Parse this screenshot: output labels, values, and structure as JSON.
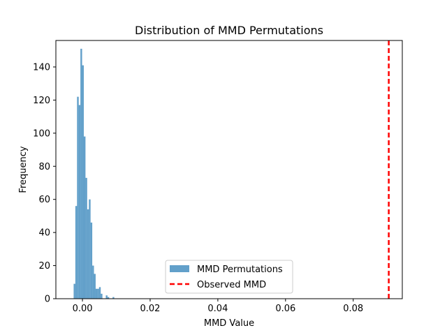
{
  "chart_data": {
    "type": "histogram",
    "title": "Distribution of MMD Permutations",
    "xlabel": "MMD Value",
    "ylabel": "Frequency",
    "xlim": [
      -0.00785,
      0.0945
    ],
    "ylim": [
      0,
      156
    ],
    "xticks": [
      0.0,
      0.02,
      0.04,
      0.06,
      0.08
    ],
    "xtick_labels": [
      "0.00",
      "0.02",
      "0.04",
      "0.06",
      "0.08"
    ],
    "yticks": [
      0,
      20,
      40,
      60,
      80,
      100,
      120,
      140
    ],
    "yticklabels": [
      "0",
      "20",
      "40",
      "60",
      "80",
      "100",
      "120",
      "140"
    ],
    "grid": false,
    "legend_position": "lower center",
    "series": [
      {
        "name": "MMD Permutations",
        "kind": "histogram",
        "color": "#1f77b4",
        "alpha": 0.7,
        "bins": [
          {
            "x0": -0.0026,
            "x1": -0.0021,
            "count": 9
          },
          {
            "x0": -0.0021,
            "x1": -0.0016,
            "count": 56
          },
          {
            "x0": -0.0016,
            "x1": -0.0011,
            "count": 122
          },
          {
            "x0": -0.0011,
            "x1": -0.0006,
            "count": 117
          },
          {
            "x0": -0.0006,
            "x1": -0.0001,
            "count": 151
          },
          {
            "x0": -0.0001,
            "x1": 0.0004,
            "count": 141
          },
          {
            "x0": 0.0004,
            "x1": 0.0009,
            "count": 98
          },
          {
            "x0": 0.0009,
            "x1": 0.0014,
            "count": 73
          },
          {
            "x0": 0.0014,
            "x1": 0.0019,
            "count": 54
          },
          {
            "x0": 0.0019,
            "x1": 0.0024,
            "count": 60
          },
          {
            "x0": 0.0024,
            "x1": 0.0029,
            "count": 46
          },
          {
            "x0": 0.0029,
            "x1": 0.0034,
            "count": 20
          },
          {
            "x0": 0.0034,
            "x1": 0.0039,
            "count": 15
          },
          {
            "x0": 0.0039,
            "x1": 0.0044,
            "count": 6
          },
          {
            "x0": 0.0044,
            "x1": 0.0049,
            "count": 6
          },
          {
            "x0": 0.0049,
            "x1": 0.0054,
            "count": 7
          },
          {
            "x0": 0.0054,
            "x1": 0.0059,
            "count": 3
          },
          {
            "x0": 0.0059,
            "x1": 0.0064,
            "count": 0
          },
          {
            "x0": 0.0064,
            "x1": 0.0069,
            "count": 0
          },
          {
            "x0": 0.0069,
            "x1": 0.0074,
            "count": 2
          },
          {
            "x0": 0.0074,
            "x1": 0.0079,
            "count": 1
          },
          {
            "x0": 0.0079,
            "x1": 0.0084,
            "count": 0
          },
          {
            "x0": 0.0084,
            "x1": 0.0089,
            "count": 0
          },
          {
            "x0": 0.0089,
            "x1": 0.0094,
            "count": 1
          }
        ]
      },
      {
        "name": "Observed MMD",
        "kind": "vline",
        "color": "#ff0000",
        "linestyle": "dashed",
        "x": 0.0905
      }
    ]
  }
}
